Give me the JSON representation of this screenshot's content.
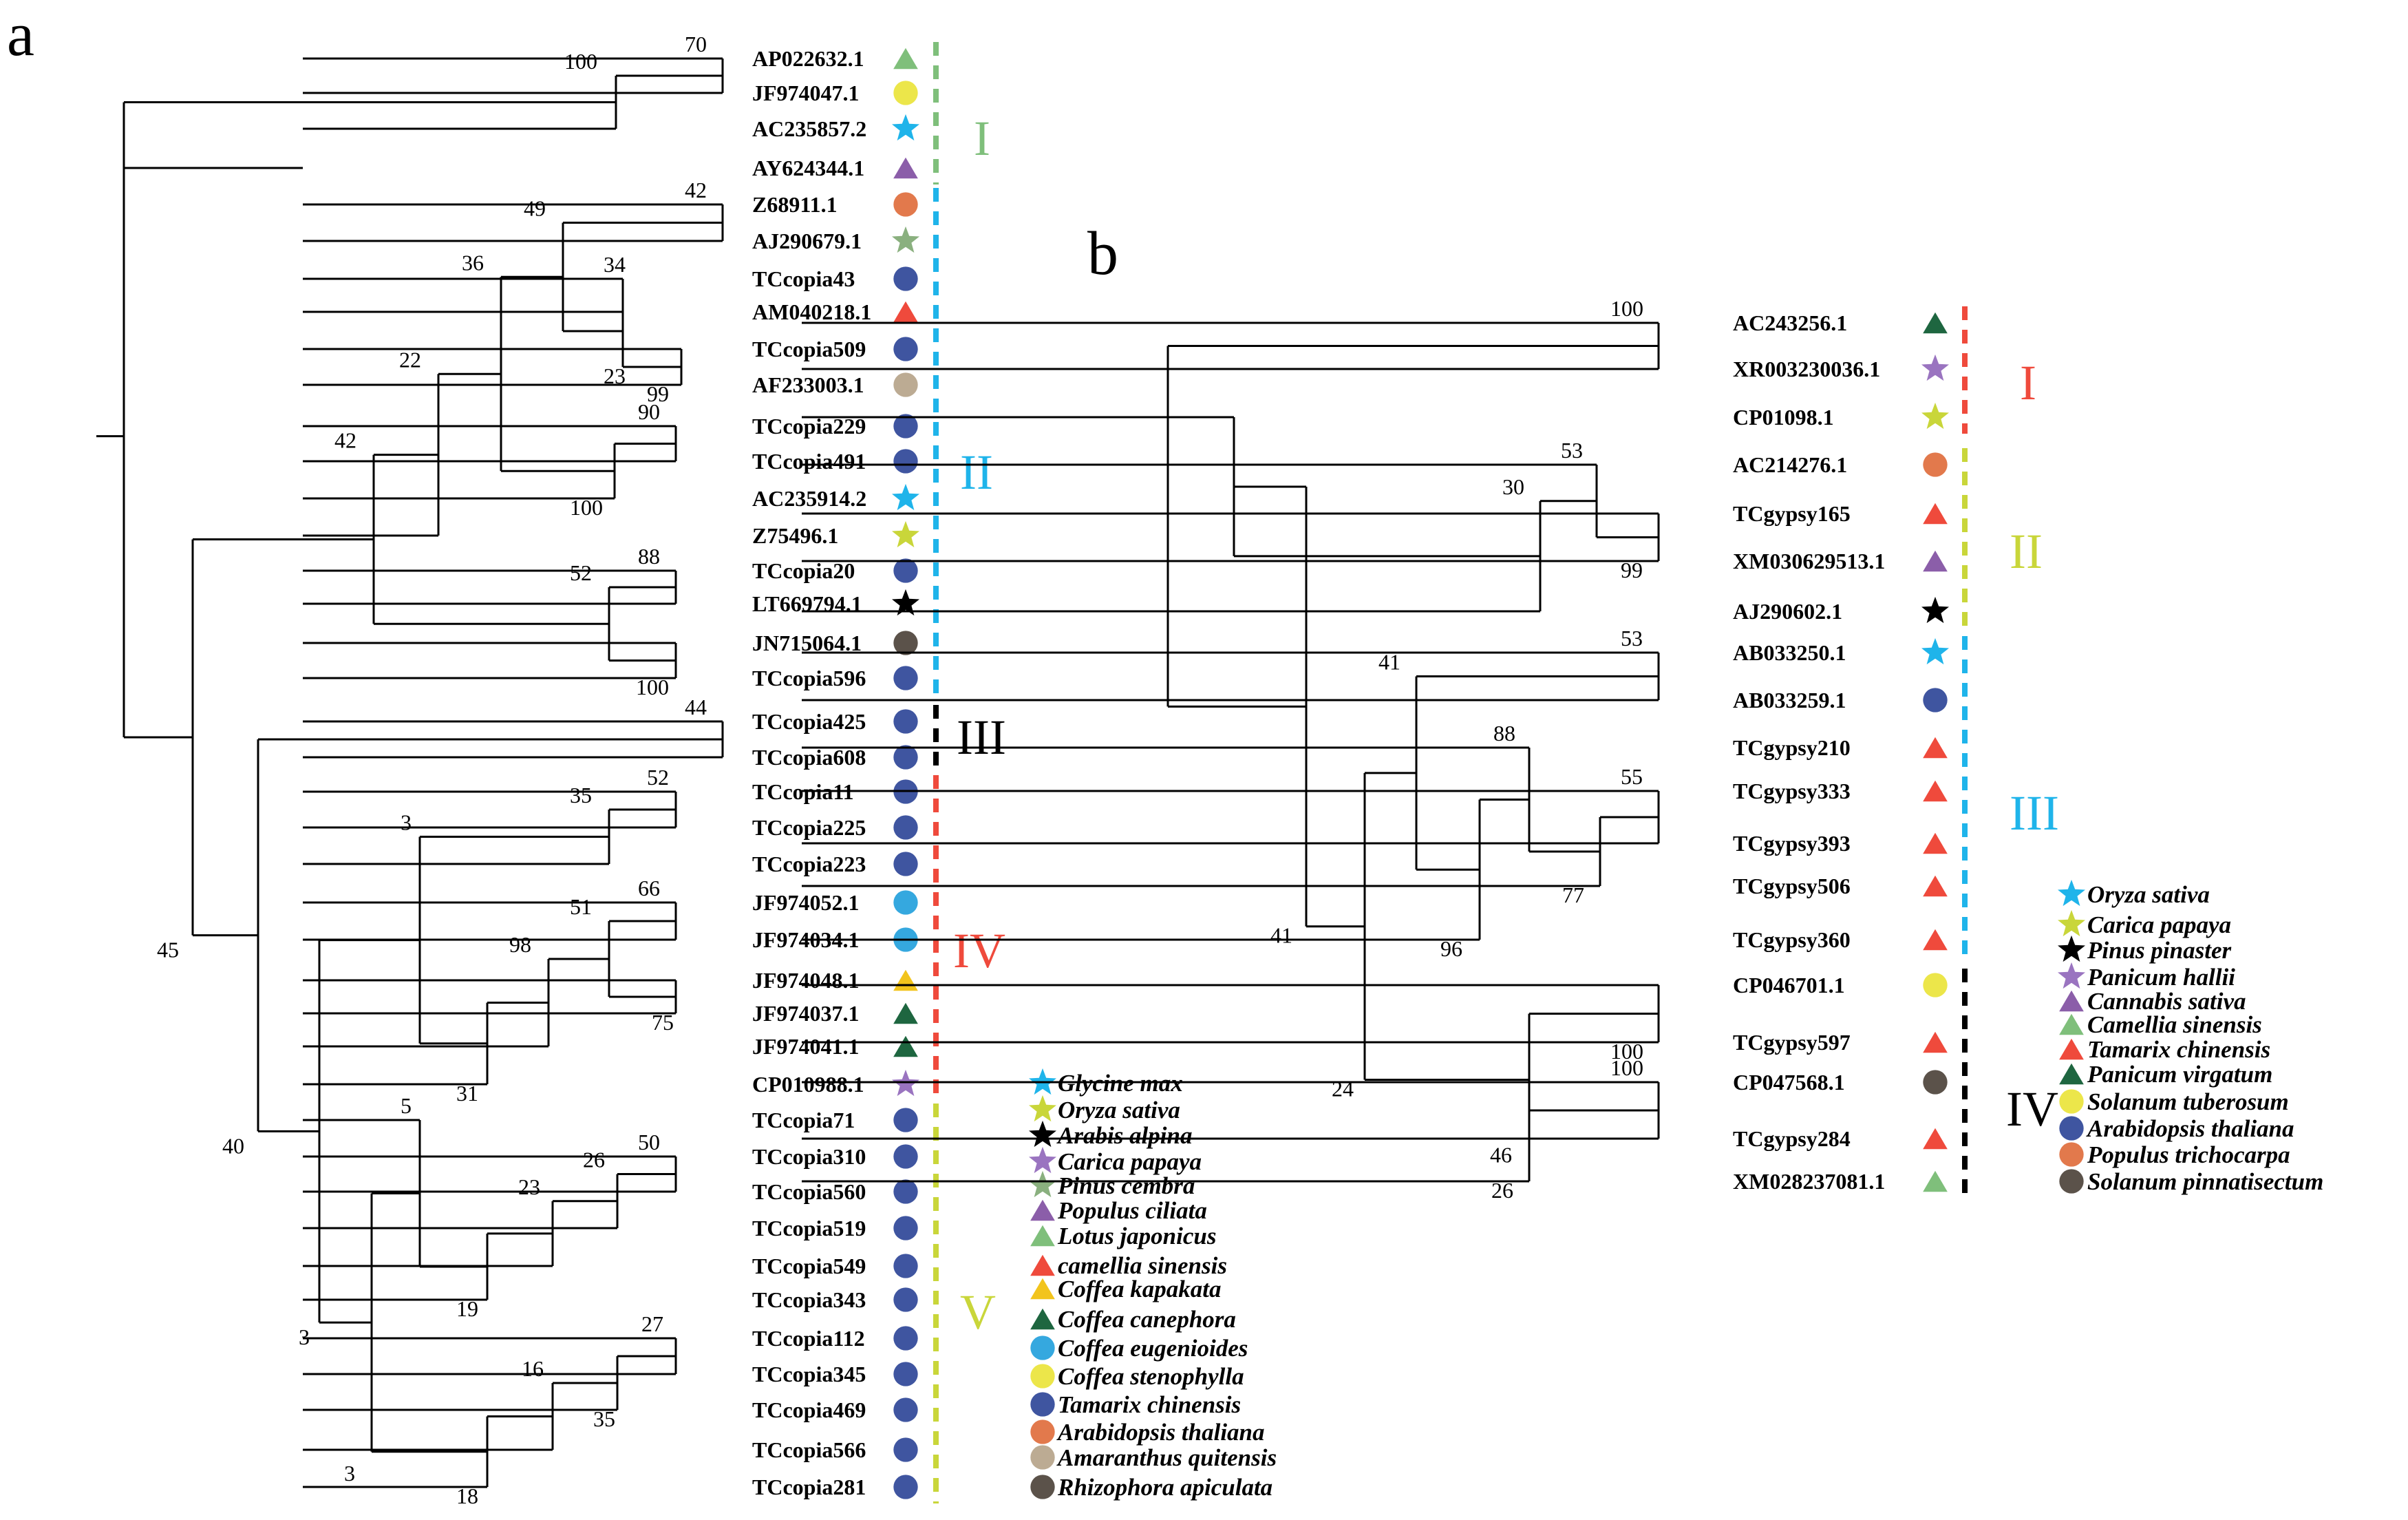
{
  "colors": {
    "green_light": "#7fbf7b",
    "yellow": "#ece64a",
    "cyan": "#1fb4ea",
    "purple": "#8b5ea9",
    "orange": "#e2794c",
    "navy": "#3f55a0",
    "red": "#ef4a3c",
    "sage": "#8ab07f",
    "beige": "#bcab93",
    "brown": "#5b524a",
    "black": "#000000",
    "olive_yellow": "#c9d63a",
    "dark_green": "#1e6640",
    "blue_teal": "#35a8df",
    "gold": "#f2c41c",
    "magenta_purple": "#9a74c0"
  },
  "panel_a": {
    "letter": "a",
    "leaves": [
      {
        "label": "AP022632.1",
        "shape": "triangle",
        "color": "#7fbf7b"
      },
      {
        "label": "JF974047.1",
        "shape": "circle",
        "color": "#ece64a"
      },
      {
        "label": "AC235857.2",
        "shape": "star",
        "color": "#1fb4ea"
      },
      {
        "label": "AY624344.1",
        "shape": "triangle",
        "color": "#8b5ea9"
      },
      {
        "label": "Z68911.1",
        "shape": "circle",
        "color": "#e2794c"
      },
      {
        "label": "AJ290679.1",
        "shape": "star",
        "color": "#8ab07f"
      },
      {
        "label": "TCcopia43",
        "shape": "circle",
        "color": "#3f55a0"
      },
      {
        "label": "AM040218.1",
        "shape": "triangle",
        "color": "#ef4a3c"
      },
      {
        "label": "TCcopia509",
        "shape": "circle",
        "color": "#3f55a0"
      },
      {
        "label": "AF233003.1",
        "shape": "circle",
        "color": "#bcab93"
      },
      {
        "label": "TCcopia229",
        "shape": "circle",
        "color": "#3f55a0"
      },
      {
        "label": "TCcopia491",
        "shape": "circle",
        "color": "#3f55a0"
      },
      {
        "label": "AC235914.2",
        "shape": "star",
        "color": "#1fb4ea"
      },
      {
        "label": "Z75496.1",
        "shape": "star",
        "color": "#c9d63a"
      },
      {
        "label": "TCcopia20",
        "shape": "circle",
        "color": "#3f55a0"
      },
      {
        "label": "LT669794.1",
        "shape": "star",
        "color": "#000000"
      },
      {
        "label": "JN715064.1",
        "shape": "circle",
        "color": "#5b524a"
      },
      {
        "label": "TCcopia596",
        "shape": "circle",
        "color": "#3f55a0"
      },
      {
        "label": "TCcopia425",
        "shape": "circle",
        "color": "#3f55a0"
      },
      {
        "label": "TCcopia608",
        "shape": "circle",
        "color": "#3f55a0"
      },
      {
        "label": "TCcopia11",
        "shape": "circle",
        "color": "#3f55a0"
      },
      {
        "label": "TCcopia225",
        "shape": "circle",
        "color": "#3f55a0"
      },
      {
        "label": "TCcopia223",
        "shape": "circle",
        "color": "#3f55a0"
      },
      {
        "label": "JF974052.1",
        "shape": "circle",
        "color": "#35a8df"
      },
      {
        "label": "JF974034.1",
        "shape": "circle",
        "color": "#35a8df"
      },
      {
        "label": "JF974048.1",
        "shape": "triangle",
        "color": "#f2c41c"
      },
      {
        "label": "JF974037.1",
        "shape": "triangle",
        "color": "#1e6640"
      },
      {
        "label": "JF974041.1",
        "shape": "triangle",
        "color": "#1e6640"
      },
      {
        "label": "CP010988.1",
        "shape": "star",
        "color": "#9a74c0"
      },
      {
        "label": "TCcopia71",
        "shape": "circle",
        "color": "#3f55a0"
      },
      {
        "label": "TCcopia310",
        "shape": "circle",
        "color": "#3f55a0"
      },
      {
        "label": "TCcopia560",
        "shape": "circle",
        "color": "#3f55a0"
      },
      {
        "label": "TCcopia519",
        "shape": "circle",
        "color": "#3f55a0"
      },
      {
        "label": "TCcopia549",
        "shape": "circle",
        "color": "#3f55a0"
      },
      {
        "label": "TCcopia343",
        "shape": "circle",
        "color": "#3f55a0"
      },
      {
        "label": "TCcopia112",
        "shape": "circle",
        "color": "#3f55a0"
      },
      {
        "label": "TCcopia345",
        "shape": "circle",
        "color": "#3f55a0"
      },
      {
        "label": "TCcopia469",
        "shape": "circle",
        "color": "#3f55a0"
      },
      {
        "label": "TCcopia566",
        "shape": "circle",
        "color": "#3f55a0"
      },
      {
        "label": "TCcopia281",
        "shape": "circle",
        "color": "#3f55a0"
      }
    ],
    "support_values": [
      "70",
      "100",
      "42",
      "34",
      "23",
      "99",
      "49",
      "90",
      "100",
      "36",
      "22",
      "88",
      "52",
      "100",
      "42",
      "44",
      "52",
      "35",
      "66",
      "51",
      "75",
      "98",
      "31",
      "3",
      "50",
      "26",
      "23",
      "19",
      "5",
      "27",
      "35",
      "16",
      "18",
      "3",
      "3",
      "40",
      "45"
    ],
    "clades": [
      {
        "label": "I",
        "color": "#7fbf7b"
      },
      {
        "label": "II",
        "color": "#1fb4ea"
      },
      {
        "label": "III",
        "color": "#000000"
      },
      {
        "label": "IV",
        "color": "#ef4a3c"
      },
      {
        "label": "V",
        "color": "#c9d63a"
      }
    ],
    "legend": [
      {
        "name": "Glycine max",
        "shape": "star",
        "color": "#1fb4ea"
      },
      {
        "name": "Oryza sativa",
        "shape": "star",
        "color": "#c9d63a"
      },
      {
        "name": "Arabis alpina",
        "shape": "star",
        "color": "#000000"
      },
      {
        "name": "Carica papaya",
        "shape": "star",
        "color": "#9a74c0"
      },
      {
        "name": "Pinus cembra",
        "shape": "star",
        "color": "#8ab07f"
      },
      {
        "name": "Populus ciliata",
        "shape": "triangle",
        "color": "#8b5ea9"
      },
      {
        "name": "Lotus japonicus",
        "shape": "triangle",
        "color": "#7fbf7b"
      },
      {
        "name": "camellia sinensis",
        "shape": "triangle",
        "color": "#ef4a3c"
      },
      {
        "name": "Coffea kapakata",
        "shape": "triangle",
        "color": "#f2c41c"
      },
      {
        "name": "Coffea canephora",
        "shape": "triangle",
        "color": "#1e6640"
      },
      {
        "name": "Coffea eugenioides",
        "shape": "circle",
        "color": "#35a8df"
      },
      {
        "name": "Coffea stenophylla",
        "shape": "circle",
        "color": "#ece64a"
      },
      {
        "name": "Tamarix chinensis",
        "shape": "circle",
        "color": "#3f55a0"
      },
      {
        "name": "Arabidopsis thaliana",
        "shape": "circle",
        "color": "#e2794c"
      },
      {
        "name": "Amaranthus quitensis",
        "shape": "circle",
        "color": "#bcab93"
      },
      {
        "name": "Rhizophora apiculata",
        "shape": "circle",
        "color": "#5b524a"
      }
    ]
  },
  "panel_b": {
    "letter": "b",
    "leaves": [
      {
        "label": "AC243256.1",
        "shape": "triangle",
        "color": "#1e6640"
      },
      {
        "label": "XR003230036.1",
        "shape": "star",
        "color": "#9a74c0"
      },
      {
        "label": "CP01098.1",
        "shape": "star",
        "color": "#c9d63a"
      },
      {
        "label": "AC214276.1",
        "shape": "circle",
        "color": "#e2794c"
      },
      {
        "label": "TCgypsy165",
        "shape": "triangle",
        "color": "#ef4a3c"
      },
      {
        "label": "XM030629513.1",
        "shape": "triangle",
        "color": "#8b5ea9"
      },
      {
        "label": "AJ290602.1",
        "shape": "star",
        "color": "#000000"
      },
      {
        "label": "AB033250.1",
        "shape": "star",
        "color": "#1fb4ea"
      },
      {
        "label": "AB033259.1",
        "shape": "circle",
        "color": "#3f55a0"
      },
      {
        "label": "TCgypsy210",
        "shape": "triangle",
        "color": "#ef4a3c"
      },
      {
        "label": "TCgypsy333",
        "shape": "triangle",
        "color": "#ef4a3c"
      },
      {
        "label": "TCgypsy393",
        "shape": "triangle",
        "color": "#ef4a3c"
      },
      {
        "label": "TCgypsy506",
        "shape": "triangle",
        "color": "#ef4a3c"
      },
      {
        "label": "TCgypsy360",
        "shape": "triangle",
        "color": "#ef4a3c"
      },
      {
        "label": "CP046701.1",
        "shape": "circle",
        "color": "#ece64a"
      },
      {
        "label": "TCgypsy597",
        "shape": "triangle",
        "color": "#ef4a3c"
      },
      {
        "label": "CP047568.1",
        "shape": "circle",
        "color": "#5b524a"
      },
      {
        "label": "TCgypsy284",
        "shape": "triangle",
        "color": "#ef4a3c"
      },
      {
        "label": "XM028237081.1",
        "shape": "triangle",
        "color": "#7fbf7b"
      }
    ],
    "support_values": [
      "100",
      "53",
      "99",
      "30",
      "53",
      "55",
      "88",
      "77",
      "96",
      "41",
      "100",
      "100",
      "26",
      "46",
      "24",
      "41"
    ],
    "clades": [
      {
        "label": "I",
        "color": "#ef4a3c"
      },
      {
        "label": "II",
        "color": "#c9d63a"
      },
      {
        "label": "III",
        "color": "#1fb4ea"
      },
      {
        "label": "IV",
        "color": "#000000"
      }
    ],
    "legend": [
      {
        "name": "Oryza sativa",
        "shape": "star",
        "color": "#1fb4ea"
      },
      {
        "name": "Carica papaya",
        "shape": "star",
        "color": "#c9d63a"
      },
      {
        "name": "Pinus pinaster",
        "shape": "star",
        "color": "#000000"
      },
      {
        "name": "Panicum hallii",
        "shape": "star",
        "color": "#9a74c0"
      },
      {
        "name": "Cannabis sativa",
        "shape": "triangle",
        "color": "#8b5ea9"
      },
      {
        "name": "Camellia sinensis",
        "shape": "triangle",
        "color": "#7fbf7b"
      },
      {
        "name": "Tamarix chinensis",
        "shape": "triangle",
        "color": "#ef4a3c"
      },
      {
        "name": "Panicum virgatum",
        "shape": "triangle",
        "color": "#1e6640"
      },
      {
        "name": "Solanum tuberosum",
        "shape": "circle",
        "color": "#ece64a"
      },
      {
        "name": "Arabidopsis thaliana",
        "shape": "circle",
        "color": "#3f55a0"
      },
      {
        "name": "Populus trichocarpa",
        "shape": "circle",
        "color": "#e2794c"
      },
      {
        "name": "Solanum pinnatisectum",
        "shape": "circle",
        "color": "#5b524a"
      }
    ]
  }
}
